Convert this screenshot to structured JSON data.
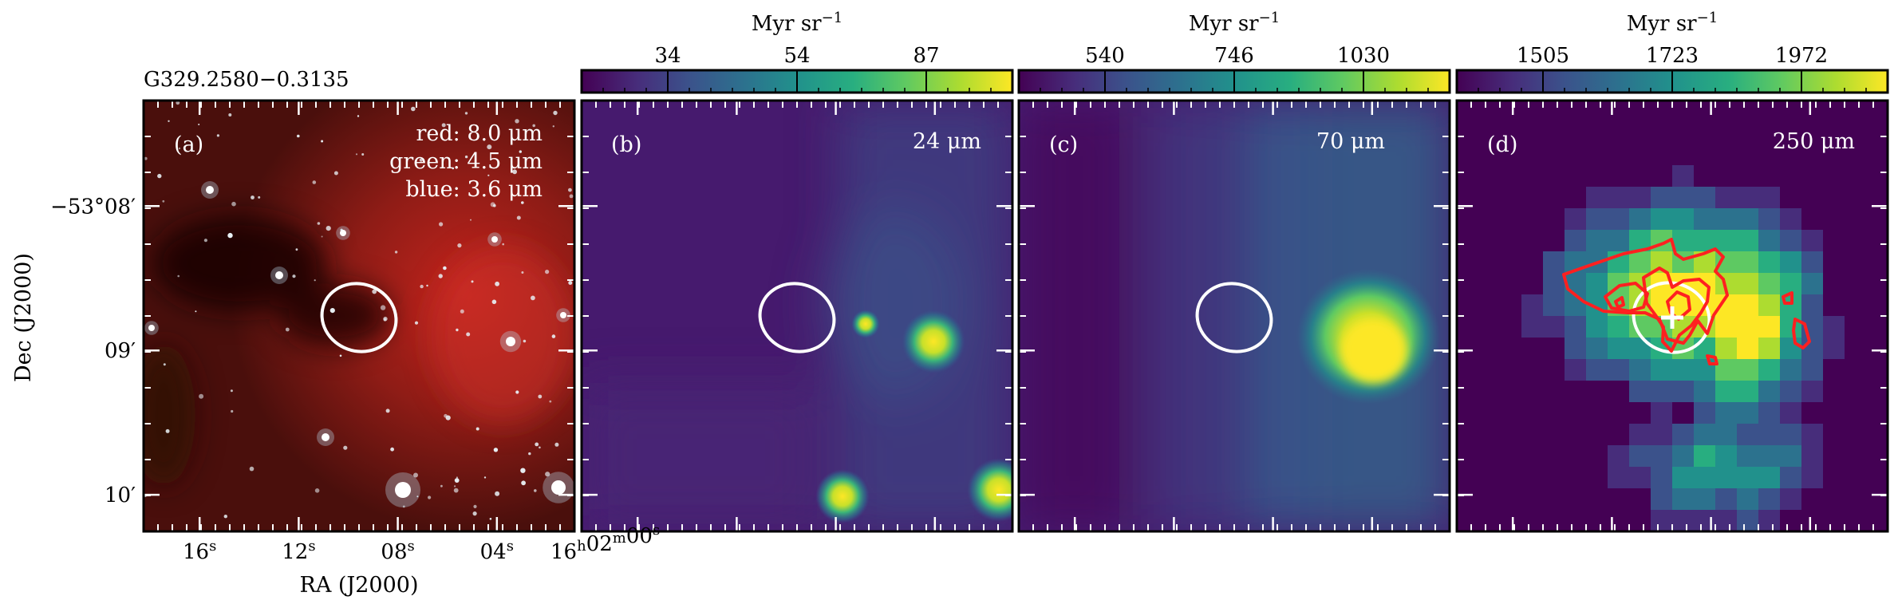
{
  "figure": {
    "source_name": "G329.2580−0.3135",
    "y_axis_label": "Dec (J2000)",
    "x_axis_label": "RA (J2000)",
    "y_ticks": [
      {
        "main": "−53°08",
        "sup": "′"
      },
      {
        "main": "09",
        "sup": "′"
      },
      {
        "main": "10",
        "sup": "′"
      }
    ],
    "x_ticks": [
      {
        "main": "16",
        "sup": "s"
      },
      {
        "main": "12",
        "sup": "s"
      },
      {
        "main": "08",
        "sup": "s"
      },
      {
        "main": "04",
        "sup": "s"
      },
      {
        "main": "16",
        "sup": "h",
        "main2": "02",
        "sup2": "m",
        "main3": "00",
        "sup3": "s"
      }
    ],
    "colors": {
      "ellipse": "#ffffff",
      "contour": "#ff2020",
      "frame": "#000000"
    }
  },
  "panels": [
    {
      "id": "a",
      "tag": "(a)",
      "legend": [
        "red: 8.0 μm",
        "green: 4.5 μm",
        "blue: 3.6 μm"
      ],
      "colormap": "rgb"
    },
    {
      "id": "b",
      "tag": "(b)",
      "band": "24 μm",
      "colorbar": {
        "unit": "Myr sr",
        "unit_exp": "−1",
        "ticks": [
          "34",
          "54",
          "87"
        ]
      },
      "colormap": "viridis"
    },
    {
      "id": "c",
      "tag": "(c)",
      "band": "70 μm",
      "colorbar": {
        "unit": "Myr sr",
        "unit_exp": "−1",
        "ticks": [
          "540",
          "746",
          "1030"
        ]
      },
      "colormap": "viridis"
    },
    {
      "id": "d",
      "tag": "(d)",
      "band": "250 μm",
      "colorbar": {
        "unit": "Myr sr",
        "unit_exp": "−1",
        "ticks": [
          "1505",
          "1723",
          "1972"
        ]
      },
      "colormap": "viridis"
    }
  ]
}
